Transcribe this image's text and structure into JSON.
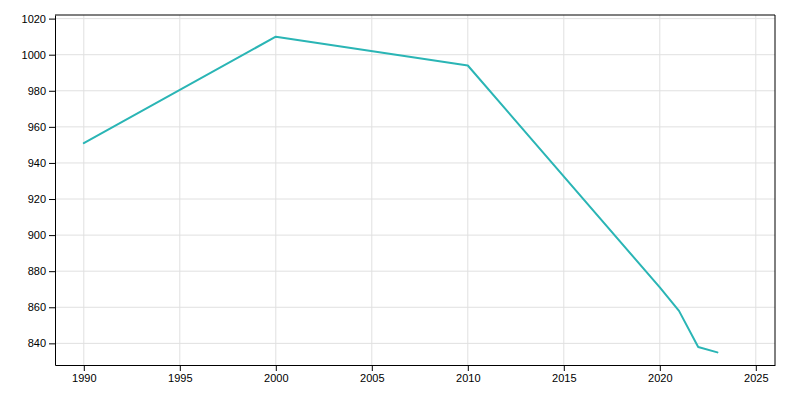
{
  "chart_data": {
    "type": "line",
    "x": [
      1990,
      2000,
      2010,
      2020,
      2021,
      2022,
      2023
    ],
    "values": [
      951,
      1010,
      994,
      871,
      858,
      838,
      835
    ],
    "color": "#2ab5b5",
    "xlim": [
      1988.5,
      2026
    ],
    "ylim": [
      828,
      1022
    ],
    "xticks": [
      1990,
      1995,
      2000,
      2005,
      2010,
      2015,
      2020,
      2025
    ],
    "yticks": [
      840,
      860,
      880,
      900,
      920,
      940,
      960,
      980,
      1000,
      1020
    ],
    "grid": true
  }
}
